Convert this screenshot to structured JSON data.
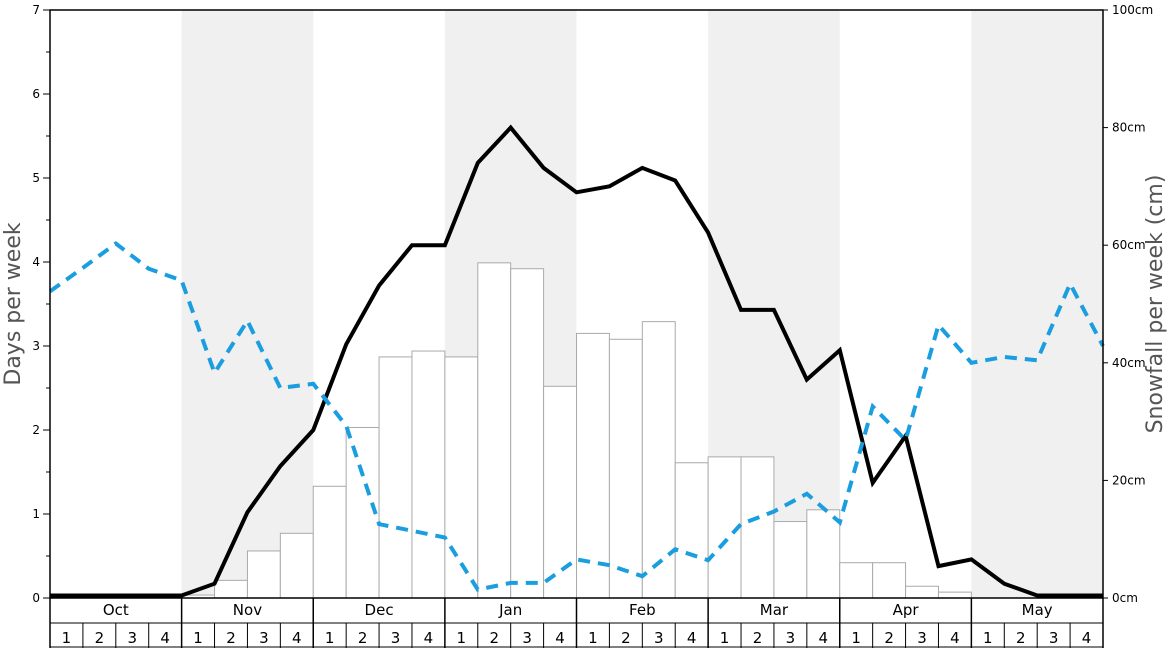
{
  "chart_data": {
    "type": "bar+line",
    "xlabel": "",
    "ylabel_left": "Days per week",
    "ylabel_right": "Snowfall per week (cm)",
    "ylim_left": [
      0,
      7
    ],
    "ylim_right": [
      0,
      100
    ],
    "left_ticks": [
      "0",
      "1",
      "2",
      "3",
      "4",
      "5",
      "6",
      "7"
    ],
    "right_ticks": [
      "0cm",
      "20cm",
      "40cm",
      "60cm",
      "80cm",
      "100cm"
    ],
    "months": [
      "Oct",
      "Nov",
      "Dec",
      "Jan",
      "Feb",
      "Mar",
      "Apr",
      "May"
    ],
    "weeks": [
      "1",
      "2",
      "3",
      "4"
    ],
    "shaded_months": [
      "Nov",
      "Jan",
      "Mar",
      "May"
    ],
    "colors": {
      "shade": "#f0f0f0",
      "bar_fill": "#ffffff",
      "bar_stroke": "#aaaaaa",
      "solid_line": "#000000",
      "dashed_line": "#1a9ee0"
    },
    "series": [
      {
        "kind": "bar",
        "axis": "right",
        "values": [
          0,
          0,
          0,
          0,
          0.5,
          3,
          8,
          11,
          19,
          29,
          41,
          42,
          41,
          57,
          56,
          36,
          45,
          44,
          47,
          23,
          24,
          24,
          13,
          15,
          6,
          6,
          2,
          1,
          0,
          0,
          0,
          0
        ]
      },
      {
        "kind": "line",
        "axis": "left",
        "style": "solid",
        "points": [
          [
            0,
            0.03
          ],
          [
            4,
            0.03
          ],
          [
            5,
            0.17
          ],
          [
            6,
            1.02
          ],
          [
            7,
            1.57
          ],
          [
            8,
            2.0
          ],
          [
            9,
            3.02
          ],
          [
            10,
            3.72
          ],
          [
            11,
            4.2
          ],
          [
            12,
            4.2
          ],
          [
            13,
            5.18
          ],
          [
            14,
            5.6
          ],
          [
            15,
            5.12
          ],
          [
            16,
            4.83
          ],
          [
            17,
            4.9
          ],
          [
            18,
            5.12
          ],
          [
            19,
            4.97
          ],
          [
            20,
            4.35
          ],
          [
            21,
            3.43
          ],
          [
            22,
            3.43
          ],
          [
            23,
            2.6
          ],
          [
            24,
            2.95
          ],
          [
            25,
            1.37
          ],
          [
            26,
            1.93
          ],
          [
            27,
            0.38
          ],
          [
            28,
            0.46
          ],
          [
            29,
            0.17
          ],
          [
            30,
            0.03
          ],
          [
            32,
            0.03
          ]
        ]
      },
      {
        "kind": "line",
        "axis": "left",
        "style": "dashed",
        "points": [
          [
            0,
            3.65
          ],
          [
            1,
            3.93
          ],
          [
            2,
            4.22
          ],
          [
            3,
            3.92
          ],
          [
            4,
            3.78
          ],
          [
            5,
            2.68
          ],
          [
            6,
            3.3
          ],
          [
            7,
            2.5
          ],
          [
            8,
            2.55
          ],
          [
            9,
            2.05
          ],
          [
            10,
            0.88
          ],
          [
            11,
            0.8
          ],
          [
            12,
            0.72
          ],
          [
            13,
            0.1
          ],
          [
            14,
            0.18
          ],
          [
            15,
            0.18
          ],
          [
            16,
            0.46
          ],
          [
            17,
            0.39
          ],
          [
            18,
            0.26
          ],
          [
            19,
            0.58
          ],
          [
            20,
            0.45
          ],
          [
            21,
            0.88
          ],
          [
            22,
            1.03
          ],
          [
            23,
            1.24
          ],
          [
            24,
            0.9
          ],
          [
            25,
            2.28
          ],
          [
            26,
            1.88
          ],
          [
            27,
            3.25
          ],
          [
            28,
            2.8
          ],
          [
            29,
            2.87
          ],
          [
            30,
            2.83
          ],
          [
            31,
            3.74
          ],
          [
            32,
            3.0
          ]
        ]
      }
    ],
    "grid": false,
    "legend": "none"
  }
}
